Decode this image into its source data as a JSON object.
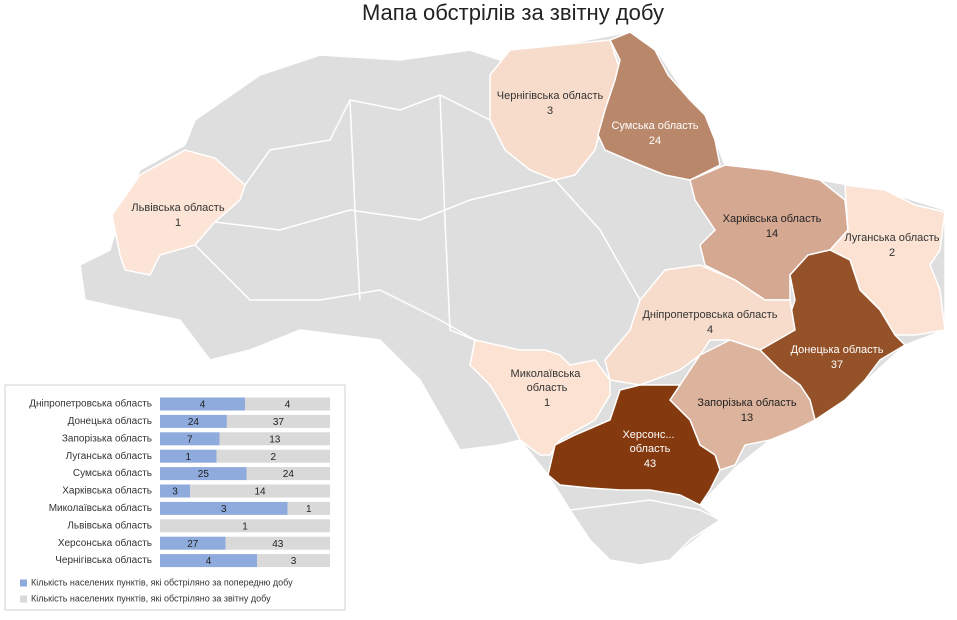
{
  "title": "Мапа обстрілів за звітну добу",
  "regions": [
    {
      "name": "Львівська область",
      "value": 1,
      "color": "#fce4d6"
    },
    {
      "name": "Чернігівська область",
      "value": 3,
      "color": "#f8dccb"
    },
    {
      "name": "Сумська область",
      "value": 24,
      "color": "#b9876a"
    },
    {
      "name": "Харківська область",
      "value": 14,
      "color": "#d5a892"
    },
    {
      "name": "Луганська область",
      "value": 2,
      "color": "#fbe2d3"
    },
    {
      "name": "Донецька область",
      "value": 37,
      "color": "#955228"
    },
    {
      "name": "Дніпропетровська область",
      "value": 4,
      "color": "#f7dccb"
    },
    {
      "name": "Запорізька область",
      "value": 13,
      "color": "#dcb39c"
    },
    {
      "name": "Миколаївська область",
      "value": 1,
      "color": "#fbe2d3"
    },
    {
      "name": "Херсонс... область",
      "value": 43,
      "color": "#84390f"
    }
  ],
  "chart_data": {
    "type": "bar",
    "categories": [
      "Дніпропетровська область",
      "Донецька область",
      "Запорізька область",
      "Луганська область",
      "Сумська область",
      "Харківська область",
      "Миколаївська область",
      "Львівська область",
      "Херсонська область",
      "Чернігівська область"
    ],
    "series": [
      {
        "name": "Кількість населених пунктів, які обстріляно за попередню добу",
        "color": "#8faadc",
        "values": [
          4,
          24,
          7,
          1,
          25,
          3,
          3,
          null,
          27,
          4
        ]
      },
      {
        "name": "Кількість населених пунктів, які обстріляно за звітну добу",
        "color": "#d9d9d9",
        "values": [
          4,
          37,
          13,
          2,
          24,
          14,
          1,
          1,
          43,
          3
        ]
      }
    ]
  }
}
